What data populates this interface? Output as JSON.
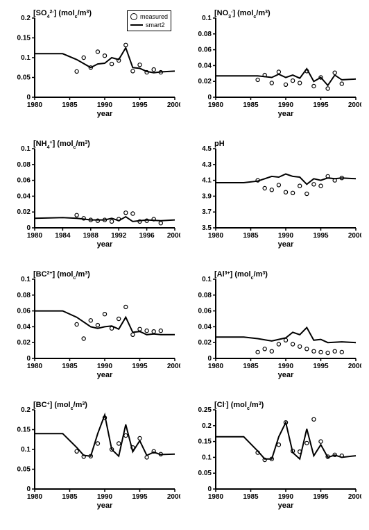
{
  "global": {
    "xlabel": "year",
    "xlim": [
      1980,
      2000
    ],
    "xticks_5": [
      1980,
      1985,
      1990,
      1995,
      2000
    ],
    "xticks_4": [
      1980,
      1984,
      1988,
      1992,
      1996,
      2000
    ],
    "line_color": "#000000",
    "marker_color": "#000000",
    "bg_color": "#ffffff",
    "line_width": 2,
    "marker_radius": 2.6,
    "font_size_axis": 10,
    "font_size_label": 11,
    "legend": {
      "measured": "measured",
      "smart2": "smart2"
    }
  },
  "panels": [
    {
      "id": "so4",
      "ylabel": "[SO42-] (molc/m3)",
      "ylabel_html": "[SO<tspan baseline-shift=\"sub\" font-size=\"7\">4</tspan><tspan baseline-shift=\"super\" font-size=\"7\">2-</tspan>] (mol<tspan baseline-shift=\"sub\" font-size=\"7\">c</tspan>/m<tspan baseline-shift=\"super\" font-size=\"7\">3</tspan>)",
      "ylim": [
        0,
        0.2
      ],
      "yticks": [
        0,
        0.05,
        0.1,
        0.15,
        0.2
      ],
      "xticks": "5",
      "show_legend": true,
      "line": [
        [
          1980,
          0.11
        ],
        [
          1984,
          0.11
        ],
        [
          1986,
          0.095
        ],
        [
          1988,
          0.075
        ],
        [
          1989,
          0.084
        ],
        [
          1990,
          0.086
        ],
        [
          1991,
          0.1
        ],
        [
          1992,
          0.095
        ],
        [
          1993,
          0.125
        ],
        [
          1994,
          0.075
        ],
        [
          1995,
          0.073
        ],
        [
          1996,
          0.065
        ],
        [
          1997,
          0.062
        ],
        [
          1998,
          0.064
        ],
        [
          2000,
          0.066
        ]
      ],
      "points": [
        [
          1986,
          0.065
        ],
        [
          1987,
          0.1
        ],
        [
          1988,
          0.075
        ],
        [
          1989,
          0.115
        ],
        [
          1990,
          0.105
        ],
        [
          1991,
          0.084
        ],
        [
          1992,
          0.093
        ],
        [
          1993,
          0.132
        ],
        [
          1994,
          0.066
        ],
        [
          1995,
          0.082
        ],
        [
          1996,
          0.063
        ],
        [
          1997,
          0.07
        ],
        [
          1998,
          0.063
        ]
      ]
    },
    {
      "id": "no3",
      "ylabel_html": "[NO<tspan baseline-shift=\"sub\" font-size=\"7\">3</tspan><tspan baseline-shift=\"super\" font-size=\"7\">-</tspan>] (mol<tspan baseline-shift=\"sub\" font-size=\"7\">c</tspan>/m<tspan baseline-shift=\"super\" font-size=\"7\">3</tspan>)",
      "ylim": [
        0,
        0.1
      ],
      "yticks": [
        0,
        0.02,
        0.04,
        0.06,
        0.08,
        0.1
      ],
      "xticks": "5",
      "line": [
        [
          1980,
          0.027
        ],
        [
          1984,
          0.027
        ],
        [
          1986,
          0.027
        ],
        [
          1988,
          0.025
        ],
        [
          1989,
          0.029
        ],
        [
          1990,
          0.025
        ],
        [
          1991,
          0.028
        ],
        [
          1992,
          0.024
        ],
        [
          1993,
          0.036
        ],
        [
          1994,
          0.02
        ],
        [
          1995,
          0.025
        ],
        [
          1996,
          0.015
        ],
        [
          1997,
          0.028
        ],
        [
          1998,
          0.022
        ],
        [
          2000,
          0.023
        ]
      ],
      "points": [
        [
          1986,
          0.022
        ],
        [
          1987,
          0.028
        ],
        [
          1988,
          0.018
        ],
        [
          1989,
          0.032
        ],
        [
          1990,
          0.016
        ],
        [
          1991,
          0.021
        ],
        [
          1992,
          0.018
        ],
        [
          1993,
          0.033
        ],
        [
          1994,
          0.014
        ],
        [
          1995,
          0.025
        ],
        [
          1996,
          0.011
        ],
        [
          1997,
          0.031
        ],
        [
          1998,
          0.017
        ]
      ]
    },
    {
      "id": "nh4",
      "ylabel_html": "[NH<tspan baseline-shift=\"sub\" font-size=\"7\">4</tspan><tspan baseline-shift=\"super\" font-size=\"7\">+</tspan>] (mol<tspan baseline-shift=\"sub\" font-size=\"7\">c</tspan>/m<tspan baseline-shift=\"super\" font-size=\"7\">3</tspan>)",
      "ylim": [
        0,
        0.1
      ],
      "yticks": [
        0,
        0.02,
        0.04,
        0.06,
        0.08,
        0.1
      ],
      "xticks": "4",
      "line": [
        [
          1980,
          0.012
        ],
        [
          1984,
          0.013
        ],
        [
          1986,
          0.012
        ],
        [
          1988,
          0.01
        ],
        [
          1990,
          0.01
        ],
        [
          1991,
          0.012
        ],
        [
          1992,
          0.009
        ],
        [
          1993,
          0.014
        ],
        [
          1994,
          0.008
        ],
        [
          1996,
          0.01
        ],
        [
          1998,
          0.009
        ],
        [
          2000,
          0.01
        ]
      ],
      "points": [
        [
          1986,
          0.016
        ],
        [
          1987,
          0.012
        ],
        [
          1988,
          0.01
        ],
        [
          1989,
          0.009
        ],
        [
          1990,
          0.01
        ],
        [
          1991,
          0.008
        ],
        [
          1992,
          0.011
        ],
        [
          1993,
          0.019
        ],
        [
          1994,
          0.018
        ],
        [
          1995,
          0.008
        ],
        [
          1996,
          0.009
        ],
        [
          1997,
          0.011
        ],
        [
          1998,
          0.006
        ]
      ]
    },
    {
      "id": "ph",
      "ylabel_html": "pH",
      "ylim": [
        3.5,
        4.5
      ],
      "yticks": [
        3.5,
        3.7,
        3.9,
        4.1,
        4.3,
        4.5
      ],
      "xticks": "5",
      "line": [
        [
          1980,
          4.07
        ],
        [
          1984,
          4.07
        ],
        [
          1986,
          4.09
        ],
        [
          1988,
          4.15
        ],
        [
          1989,
          4.14
        ],
        [
          1990,
          4.18
        ],
        [
          1991,
          4.15
        ],
        [
          1992,
          4.14
        ],
        [
          1993,
          4.05
        ],
        [
          1994,
          4.12
        ],
        [
          1995,
          4.1
        ],
        [
          1996,
          4.13
        ],
        [
          1997,
          4.12
        ],
        [
          1998,
          4.13
        ],
        [
          2000,
          4.12
        ]
      ],
      "points": [
        [
          1986,
          4.1
        ],
        [
          1987,
          4.0
        ],
        [
          1988,
          3.98
        ],
        [
          1989,
          4.04
        ],
        [
          1990,
          3.95
        ],
        [
          1991,
          3.94
        ],
        [
          1992,
          4.03
        ],
        [
          1993,
          3.93
        ],
        [
          1994,
          4.05
        ],
        [
          1995,
          4.03
        ],
        [
          1996,
          4.15
        ],
        [
          1997,
          4.1
        ],
        [
          1998,
          4.13
        ]
      ]
    },
    {
      "id": "bc2",
      "ylabel_html": "[BC<tspan baseline-shift=\"super\" font-size=\"7\">2+</tspan>] (mol<tspan baseline-shift=\"sub\" font-size=\"7\">c</tspan>/m<tspan baseline-shift=\"super\" font-size=\"7\">3</tspan>)",
      "ylim": [
        0,
        0.1
      ],
      "yticks": [
        0,
        0.02,
        0.04,
        0.06,
        0.08,
        0.1
      ],
      "xticks": "5",
      "line": [
        [
          1980,
          0.06
        ],
        [
          1984,
          0.06
        ],
        [
          1986,
          0.052
        ],
        [
          1988,
          0.04
        ],
        [
          1989,
          0.038
        ],
        [
          1990,
          0.04
        ],
        [
          1991,
          0.041
        ],
        [
          1992,
          0.037
        ],
        [
          1993,
          0.052
        ],
        [
          1994,
          0.033
        ],
        [
          1995,
          0.034
        ],
        [
          1996,
          0.03
        ],
        [
          1997,
          0.031
        ],
        [
          1998,
          0.03
        ],
        [
          2000,
          0.03
        ]
      ],
      "points": [
        [
          1986,
          0.043
        ],
        [
          1987,
          0.025
        ],
        [
          1988,
          0.048
        ],
        [
          1989,
          0.042
        ],
        [
          1990,
          0.056
        ],
        [
          1991,
          0.038
        ],
        [
          1992,
          0.05
        ],
        [
          1993,
          0.065
        ],
        [
          1994,
          0.03
        ],
        [
          1995,
          0.037
        ],
        [
          1996,
          0.035
        ],
        [
          1997,
          0.034
        ],
        [
          1998,
          0.035
        ]
      ]
    },
    {
      "id": "al3",
      "ylabel_html": "[Al<tspan baseline-shift=\"super\" font-size=\"7\">3+</tspan>] (mol<tspan baseline-shift=\"sub\" font-size=\"7\">c</tspan>/m<tspan baseline-shift=\"super\" font-size=\"7\">3</tspan>)",
      "ylim": [
        0,
        0.1
      ],
      "yticks": [
        0,
        0.02,
        0.04,
        0.06,
        0.08,
        0.1
      ],
      "xticks": "5",
      "line": [
        [
          1980,
          0.027
        ],
        [
          1984,
          0.027
        ],
        [
          1986,
          0.025
        ],
        [
          1988,
          0.022
        ],
        [
          1990,
          0.026
        ],
        [
          1991,
          0.033
        ],
        [
          1992,
          0.03
        ],
        [
          1993,
          0.039
        ],
        [
          1994,
          0.023
        ],
        [
          1995,
          0.024
        ],
        [
          1996,
          0.02
        ],
        [
          1998,
          0.021
        ],
        [
          2000,
          0.02
        ]
      ],
      "points": [
        [
          1986,
          0.008
        ],
        [
          1987,
          0.012
        ],
        [
          1988,
          0.009
        ],
        [
          1989,
          0.018
        ],
        [
          1990,
          0.023
        ],
        [
          1991,
          0.018
        ],
        [
          1992,
          0.015
        ],
        [
          1993,
          0.012
        ],
        [
          1994,
          0.009
        ],
        [
          1995,
          0.008
        ],
        [
          1996,
          0.007
        ],
        [
          1997,
          0.009
        ],
        [
          1998,
          0.008
        ]
      ]
    },
    {
      "id": "bc",
      "ylabel_html": "[BC<tspan baseline-shift=\"super\" font-size=\"7\">+</tspan>] (mol<tspan baseline-shift=\"sub\" font-size=\"7\">c</tspan>/m<tspan baseline-shift=\"super\" font-size=\"7\">3</tspan>)",
      "ylim": [
        0,
        0.2
      ],
      "yticks": [
        0,
        0.05,
        0.1,
        0.15,
        0.2
      ],
      "xticks": "5",
      "line": [
        [
          1980,
          0.14
        ],
        [
          1984,
          0.14
        ],
        [
          1986,
          0.105
        ],
        [
          1987,
          0.085
        ],
        [
          1988,
          0.083
        ],
        [
          1989,
          0.14
        ],
        [
          1990,
          0.187
        ],
        [
          1991,
          0.1
        ],
        [
          1992,
          0.083
        ],
        [
          1993,
          0.163
        ],
        [
          1994,
          0.094
        ],
        [
          1995,
          0.122
        ],
        [
          1996,
          0.085
        ],
        [
          1997,
          0.093
        ],
        [
          1998,
          0.087
        ],
        [
          2000,
          0.088
        ]
      ],
      "points": [
        [
          1986,
          0.095
        ],
        [
          1987,
          0.082
        ],
        [
          1988,
          0.083
        ],
        [
          1989,
          0.115
        ],
        [
          1990,
          0.18
        ],
        [
          1991,
          0.1
        ],
        [
          1992,
          0.115
        ],
        [
          1993,
          0.135
        ],
        [
          1994,
          0.105
        ],
        [
          1995,
          0.128
        ],
        [
          1996,
          0.08
        ],
        [
          1997,
          0.095
        ],
        [
          1998,
          0.088
        ]
      ]
    },
    {
      "id": "cl",
      "ylabel_html": "[Cl<tspan baseline-shift=\"super\" font-size=\"7\">-</tspan>] (mol<tspan baseline-shift=\"sub\" font-size=\"7\">c</tspan>/m<tspan baseline-shift=\"super\" font-size=\"7\">3</tspan>)",
      "ylim": [
        0,
        0.25
      ],
      "yticks": [
        0,
        0.05,
        0.1,
        0.15,
        0.2,
        0.25
      ],
      "xticks": "5",
      "line": [
        [
          1980,
          0.165
        ],
        [
          1984,
          0.165
        ],
        [
          1986,
          0.12
        ],
        [
          1987,
          0.095
        ],
        [
          1988,
          0.095
        ],
        [
          1989,
          0.165
        ],
        [
          1990,
          0.21
        ],
        [
          1991,
          0.115
        ],
        [
          1992,
          0.095
        ],
        [
          1993,
          0.19
        ],
        [
          1994,
          0.105
        ],
        [
          1995,
          0.14
        ],
        [
          1996,
          0.1
        ],
        [
          1997,
          0.107
        ],
        [
          1998,
          0.1
        ],
        [
          2000,
          0.105
        ]
      ],
      "points": [
        [
          1986,
          0.115
        ],
        [
          1987,
          0.092
        ],
        [
          1988,
          0.095
        ],
        [
          1989,
          0.14
        ],
        [
          1990,
          0.21
        ],
        [
          1991,
          0.12
        ],
        [
          1992,
          0.118
        ],
        [
          1993,
          0.145
        ],
        [
          1994,
          0.22
        ],
        [
          1995,
          0.15
        ],
        [
          1996,
          0.102
        ],
        [
          1997,
          0.108
        ],
        [
          1998,
          0.105
        ]
      ]
    }
  ]
}
